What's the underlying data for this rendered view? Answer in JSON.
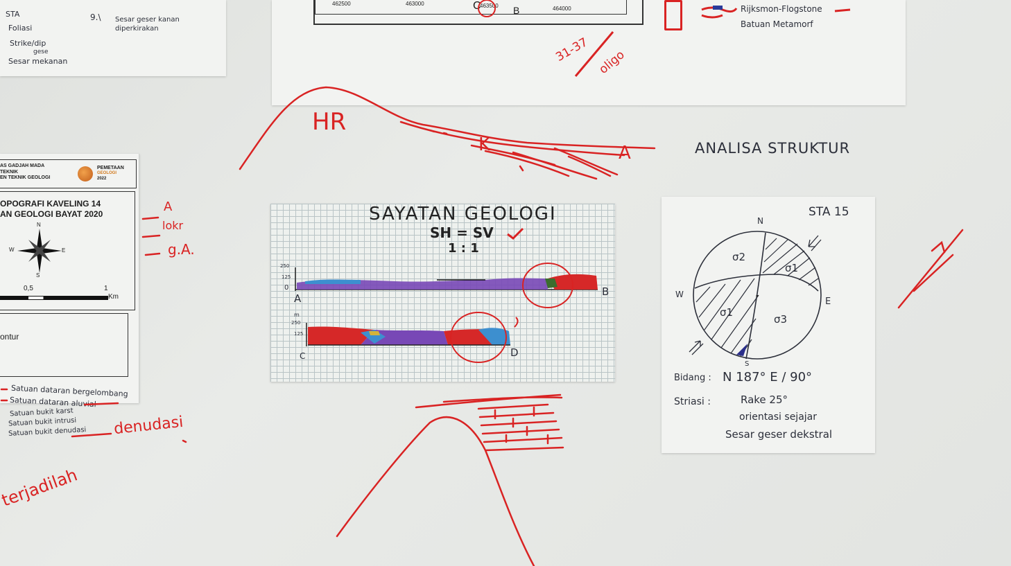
{
  "left_sheet": {
    "legend_top": [
      "STA",
      "Foliasi",
      "Strike/dip",
      "Sesar mekanan"
    ],
    "legend_top_notes": [
      "Sesar geser kanan diperkirakan",
      "gese"
    ],
    "legend_top_symbol": "9.\\",
    "institution": [
      "AS GADJAH MADA",
      "TEKNIK",
      "EN TEKNIK GEOLOGI"
    ],
    "logo_text": [
      "PEMETAAN",
      "GEOLOGI",
      "2022"
    ],
    "map_title": [
      "OPOGRAFI KAVELING 14",
      "AN GEOLOGI BAYAT 2020"
    ],
    "compass": {
      "n": "N",
      "w": "W",
      "e": "E",
      "s": "S"
    },
    "scale": {
      "half": "0,5",
      "one": "1",
      "unit": "Km"
    },
    "kontur_label": "ontur",
    "satuan": [
      "Satuan dataran bergelombang",
      "Satuan dataran aluvial",
      "Satuan bukit karst",
      "Satuan bukit intrusi",
      "Satuan bukit denudasi"
    ]
  },
  "top_sheet": {
    "coords": [
      "462500",
      "463000",
      "463500",
      "464000"
    ],
    "letters": {
      "c": "C",
      "b": "B"
    },
    "legend_text": [
      "Rijksmon-Flogstone",
      "Batuan Metamorf"
    ]
  },
  "red_notes": {
    "dip": "31-37",
    "dip2": "oligo",
    "hr": "HR",
    "k": "K",
    "a": "A",
    "left_marks": [
      "A",
      "lokr",
      "g.A."
    ],
    "denudasi": "denudasi",
    "bottom_left": "terjadilah"
  },
  "cross_section": {
    "title": "SAYATAN GEOLOGI",
    "ratio_label": "SH = SV",
    "scale": "1 : 1",
    "profile1": {
      "start": "A",
      "end": "B",
      "y_ticks": [
        "250",
        "125",
        "0"
      ]
    },
    "profile2": {
      "start": "C",
      "end": "D",
      "unit": "m",
      "y_ticks": [
        "250",
        "125"
      ]
    }
  },
  "analysis_title": "ANALISA STRUKTUR",
  "stereonet": {
    "station": "STA 15",
    "north": "N",
    "south": "S",
    "east": "E",
    "west": "W",
    "sigma": [
      "σ2",
      "σ1",
      "σ1",
      "σ3"
    ],
    "bidang_label": "Bidang :",
    "bidang_value": "N 187° E / 90°",
    "striasi_label": "Striasi :",
    "striasi_lines": [
      "Rake 25°",
      "orientasi sejajar",
      "Sesar geser dekstral"
    ]
  },
  "colors": {
    "red": "#d92323",
    "purple": "#7848b6",
    "blue": "#3d8fcf",
    "ink": "#2c2f3a"
  }
}
